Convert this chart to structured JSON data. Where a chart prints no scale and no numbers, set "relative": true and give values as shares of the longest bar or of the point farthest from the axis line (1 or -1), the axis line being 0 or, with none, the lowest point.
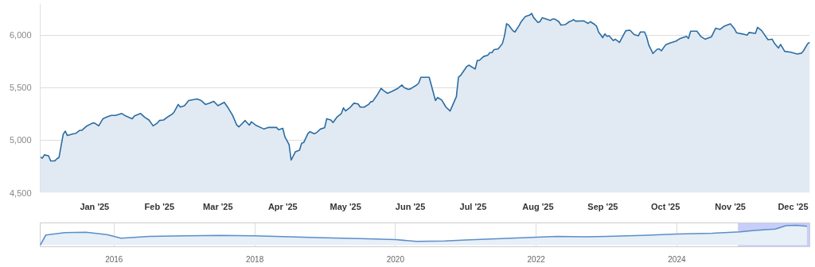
{
  "chart_data": [
    {
      "type": "area",
      "grid": "y",
      "color": "#2b6ca3",
      "xlim": [
        "2024-12-06",
        "2025-12-09"
      ],
      "ylim": [
        4500,
        6300
      ],
      "xticks": [
        {
          "value": "2025-01-01",
          "label": "Jan '25"
        },
        {
          "value": "2025-02-01",
          "label": "Feb '25"
        },
        {
          "value": "2025-03-01",
          "label": "Mar '25"
        },
        {
          "value": "2025-04-01",
          "label": "Apr '25"
        },
        {
          "value": "2025-05-01",
          "label": "May '25"
        },
        {
          "value": "2025-06-01",
          "label": "Jun '25"
        },
        {
          "value": "2025-07-01",
          "label": "Jul '25"
        },
        {
          "value": "2025-08-01",
          "label": "Aug '25"
        },
        {
          "value": "2025-09-01",
          "label": "Sep '25"
        },
        {
          "value": "2025-10-01",
          "label": "Oct '25"
        },
        {
          "value": "2025-11-01",
          "label": "Nov '25"
        },
        {
          "value": "2025-12-01",
          "label": "Dec '25"
        }
      ],
      "yticks": [
        {
          "value": 4500,
          "label": "4,500"
        },
        {
          "value": 5000,
          "label": "5,000"
        },
        {
          "value": 5500,
          "label": "5,500"
        },
        {
          "value": 6000,
          "label": "6,000"
        }
      ],
      "x": [
        "2024-12-06",
        "2024-12-07",
        "2024-12-08",
        "2024-12-10",
        "2024-12-11",
        "2024-12-13",
        "2024-12-14",
        "2024-12-15",
        "2024-12-17",
        "2024-12-18",
        "2024-12-19",
        "2024-12-22",
        "2024-12-23",
        "2024-12-25",
        "2024-12-26",
        "2024-12-28",
        "2024-12-31",
        "2025-01-01",
        "2025-01-03",
        "2025-01-05",
        "2025-01-07",
        "2025-01-09",
        "2025-01-11",
        "2025-01-14",
        "2025-01-16",
        "2025-01-19",
        "2025-01-20",
        "2025-01-23",
        "2025-01-25",
        "2025-01-27",
        "2025-01-29",
        "2025-01-31",
        "2025-02-01",
        "2025-02-03",
        "2025-02-05",
        "2025-02-07",
        "2025-02-08",
        "2025-02-10",
        "2025-02-11",
        "2025-02-13",
        "2025-02-15",
        "2025-02-19",
        "2025-02-21",
        "2025-02-23",
        "2025-02-25",
        "2025-02-27",
        "2025-03-01",
        "2025-03-04",
        "2025-03-06",
        "2025-03-08",
        "2025-03-10",
        "2025-03-11",
        "2025-03-14",
        "2025-03-16",
        "2025-03-17",
        "2025-03-19",
        "2025-03-23",
        "2025-03-25",
        "2025-03-29",
        "2025-03-30",
        "2025-04-01",
        "2025-04-02",
        "2025-04-04",
        "2025-04-05",
        "2025-04-07",
        "2025-04-09",
        "2025-04-10",
        "2025-04-11",
        "2025-04-13",
        "2025-04-14",
        "2025-04-16",
        "2025-04-17",
        "2025-04-19",
        "2025-04-21",
        "2025-04-22",
        "2025-04-24",
        "2025-04-25",
        "2025-04-27",
        "2025-04-29",
        "2025-04-30",
        "2025-05-01",
        "2025-05-03",
        "2025-05-05",
        "2025-05-07",
        "2025-05-08",
        "2025-05-10",
        "2025-05-12",
        "2025-05-13",
        "2025-05-14",
        "2025-05-16",
        "2025-05-18",
        "2025-05-19",
        "2025-05-21",
        "2025-05-23",
        "2025-05-26",
        "2025-05-28",
        "2025-05-29",
        "2025-05-31",
        "2025-06-01",
        "2025-06-04",
        "2025-06-05",
        "2025-06-06",
        "2025-06-10",
        "2025-06-13",
        "2025-06-14",
        "2025-06-16",
        "2025-06-18",
        "2025-06-20",
        "2025-06-23",
        "2025-06-24",
        "2025-06-25",
        "2025-06-28",
        "2025-06-29",
        "2025-07-02",
        "2025-07-03",
        "2025-07-04",
        "2025-07-06",
        "2025-07-08",
        "2025-07-09",
        "2025-07-10",
        "2025-07-11",
        "2025-07-13",
        "2025-07-15",
        "2025-07-16",
        "2025-07-17",
        "2025-07-18",
        "2025-07-20",
        "2025-07-21",
        "2025-07-23",
        "2025-07-24",
        "2025-07-26",
        "2025-07-28",
        "2025-07-29",
        "2025-07-30",
        "2025-08-01",
        "2025-08-02",
        "2025-08-03",
        "2025-08-07",
        "2025-08-08",
        "2025-08-09",
        "2025-08-11",
        "2025-08-12",
        "2025-08-14",
        "2025-08-16",
        "2025-08-17",
        "2025-08-18",
        "2025-08-19",
        "2025-08-23",
        "2025-08-25",
        "2025-08-26",
        "2025-08-28",
        "2025-08-29",
        "2025-08-30",
        "2025-09-01",
        "2025-09-02",
        "2025-09-03",
        "2025-09-04",
        "2025-09-06",
        "2025-09-07",
        "2025-09-09",
        "2025-09-10",
        "2025-09-12",
        "2025-09-14",
        "2025-09-16",
        "2025-09-18",
        "2025-09-19",
        "2025-09-21",
        "2025-09-22",
        "2025-09-23",
        "2025-09-25",
        "2025-09-27",
        "2025-09-28",
        "2025-09-29",
        "2025-10-01",
        "2025-10-03",
        "2025-10-06",
        "2025-10-08",
        "2025-10-11",
        "2025-10-12",
        "2025-10-13",
        "2025-10-16",
        "2025-10-18",
        "2025-10-20",
        "2025-10-23",
        "2025-10-25",
        "2025-10-27",
        "2025-10-29",
        "2025-11-01",
        "2025-11-03",
        "2025-11-04",
        "2025-11-07",
        "2025-11-09",
        "2025-11-10",
        "2025-11-13",
        "2025-11-14",
        "2025-11-16",
        "2025-11-19",
        "2025-11-21",
        "2025-11-22",
        "2025-11-24",
        "2025-11-25",
        "2025-11-27",
        "2025-11-30",
        "2025-12-03",
        "2025-12-05",
        "2025-12-06",
        "2025-12-08",
        "2025-12-09"
      ],
      "values": [
        4840,
        4828,
        4860,
        4852,
        4803,
        4803,
        4823,
        4835,
        5057,
        5086,
        5044,
        5062,
        5064,
        5094,
        5094,
        5131,
        5163,
        5163,
        5136,
        5204,
        5222,
        5236,
        5236,
        5254,
        5229,
        5204,
        5229,
        5254,
        5217,
        5192,
        5136,
        5163,
        5187,
        5192,
        5222,
        5246,
        5266,
        5340,
        5315,
        5328,
        5377,
        5392,
        5377,
        5340,
        5352,
        5369,
        5328,
        5360,
        5303,
        5236,
        5143,
        5126,
        5187,
        5143,
        5175,
        5143,
        5106,
        5121,
        5121,
        5099,
        5113,
        5032,
        4958,
        4810,
        4889,
        4904,
        4970,
        4978,
        5062,
        5081,
        5062,
        5069,
        5106,
        5118,
        5204,
        5192,
        5168,
        5222,
        5254,
        5308,
        5278,
        5308,
        5352,
        5345,
        5315,
        5315,
        5340,
        5365,
        5369,
        5426,
        5493,
        5475,
        5446,
        5463,
        5493,
        5525,
        5500,
        5483,
        5488,
        5525,
        5544,
        5599,
        5599,
        5377,
        5406,
        5382,
        5315,
        5278,
        5414,
        5599,
        5616,
        5702,
        5714,
        5677,
        5759,
        5759,
        5796,
        5808,
        5833,
        5833,
        5862,
        5869,
        5919,
        5993,
        6108,
        6096,
        6042,
        6030,
        6091,
        6128,
        6177,
        6190,
        6207,
        6165,
        6121,
        6128,
        6165,
        6140,
        6153,
        6153,
        6128,
        6096,
        6099,
        6128,
        6135,
        6148,
        6133,
        6135,
        6111,
        6128,
        6103,
        6086,
        6030,
        5975,
        6012,
        5988,
        5993,
        5948,
        5961,
        5931,
        5968,
        6042,
        6047,
        6005,
        5993,
        6030,
        6030,
        5980,
        5906,
        5825,
        5865,
        5869,
        5850,
        5906,
        5924,
        5943,
        5968,
        5988,
        5968,
        6037,
        6037,
        5985,
        5961,
        5985,
        6066,
        6054,
        6084,
        6108,
        6059,
        6022,
        6010,
        6000,
        6025,
        6017,
        6074,
        6042,
        5956,
        5961,
        5924,
        5877,
        5911,
        5845,
        5837,
        5820,
        5828,
        5852,
        5919,
        5931
      ]
    },
    {
      "type": "area",
      "relative": true,
      "grid": "x",
      "color": "#5a8fc9",
      "xlim": [
        2014.95,
        2025.89
      ],
      "xticks": [
        2016,
        2018,
        2020,
        2022,
        2024
      ],
      "tick_labels": "x",
      "bands": [
        {
          "axis": "x",
          "from": 2024.87,
          "to": 2025.89,
          "color": "#c8cdf9"
        }
      ],
      "x": [
        2014.95,
        2015.03,
        2015.3,
        2015.6,
        2015.9,
        2016.1,
        2016.5,
        2017.0,
        2017.5,
        2018.0,
        2018.5,
        2019.0,
        2019.5,
        2020.0,
        2020.3,
        2020.7,
        2021.0,
        2021.5,
        2022.0,
        2022.3,
        2022.7,
        2023.0,
        2023.5,
        2024.0,
        2024.5,
        2024.9,
        2025.1,
        2025.4,
        2025.55,
        2025.7,
        2025.85
      ],
      "values": [
        0,
        0.51,
        0.63,
        0.65,
        0.53,
        0.35,
        0.44,
        0.47,
        0.49,
        0.47,
        0.42,
        0.37,
        0.33,
        0.28,
        0.19,
        0.21,
        0.26,
        0.33,
        0.4,
        0.44,
        0.42,
        0.44,
        0.49,
        0.56,
        0.6,
        0.67,
        0.74,
        0.81,
        0.98,
        1.0,
        0.95
      ]
    }
  ]
}
